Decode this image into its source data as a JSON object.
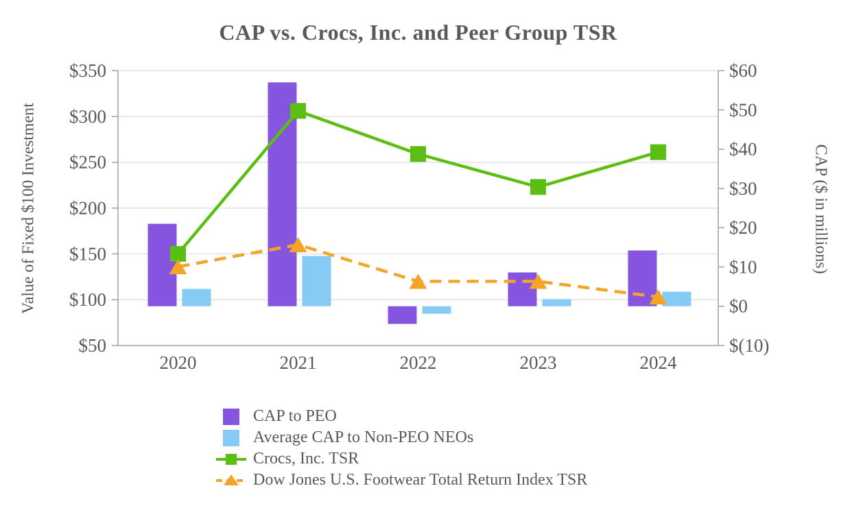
{
  "chart_data": {
    "type": "combo_bar_line",
    "title": "CAP vs. Crocs, Inc. and Peer Group TSR",
    "categories": [
      "2020",
      "2021",
      "2022",
      "2023",
      "2024"
    ],
    "bar_series": [
      {
        "name": "CAP to PEO",
        "axis": "right",
        "color": "#8655E0",
        "values": [
          21.0,
          57.0,
          -4.5,
          8.6,
          14.2
        ]
      },
      {
        "name": "Average CAP to Non-PEO NEOs",
        "axis": "right",
        "color": "#85CBF4",
        "values": [
          4.4,
          12.8,
          -1.9,
          1.8,
          3.7
        ]
      }
    ],
    "line_series": [
      {
        "name": "Crocs, Inc. TSR",
        "axis": "left",
        "color": "#5BBE12",
        "marker": "square",
        "style": "solid",
        "values": [
          150,
          306,
          259,
          223,
          261
        ]
      },
      {
        "name": "Dow Jones U.S. Footwear Total Return Index TSR",
        "axis": "left",
        "color": "#F4A428",
        "marker": "triangle",
        "style": "dashed",
        "values": [
          136,
          160,
          120,
          120,
          103
        ]
      }
    ],
    "left_axis": {
      "title": "Value of Fixed $100 Investment",
      "min": 50,
      "max": 350,
      "tick_step": 50,
      "ticks": [
        {
          "value": 350,
          "label": "$350"
        },
        {
          "value": 300,
          "label": "$300"
        },
        {
          "value": 250,
          "label": "$250"
        },
        {
          "value": 200,
          "label": "$200"
        },
        {
          "value": 150,
          "label": "$150"
        },
        {
          "value": 100,
          "label": "$100"
        },
        {
          "value": 50,
          "label": "$50"
        }
      ]
    },
    "right_axis": {
      "title": "CAP ($ in millions)",
      "min": -10,
      "max": 60,
      "tick_step": 10,
      "ticks": [
        {
          "value": 60,
          "label": "$60"
        },
        {
          "value": 50,
          "label": "$50"
        },
        {
          "value": 40,
          "label": "$40"
        },
        {
          "value": 30,
          "label": "$30"
        },
        {
          "value": 20,
          "label": "$20"
        },
        {
          "value": 10,
          "label": "$10"
        },
        {
          "value": 0,
          "label": "$0"
        },
        {
          "value": -10,
          "label": "$(10)"
        }
      ]
    },
    "grid": true,
    "legend_position": "bottom-left"
  },
  "style_colors": {
    "text": "#595959",
    "gridline": "#D9D9D9",
    "axis_line": "#A0A0A0",
    "background": "#FFFFFF"
  }
}
